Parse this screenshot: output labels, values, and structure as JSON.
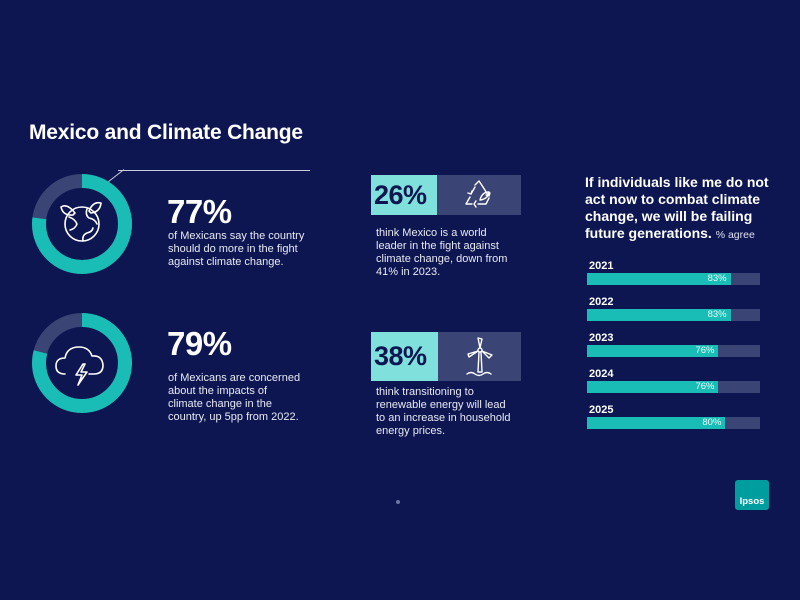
{
  "title": "Mexico and Climate Change",
  "stats": [
    {
      "value": "77%",
      "fraction": 0.77,
      "text": [
        "of Mexicans say the country",
        "should do more in the fight",
        "against climate change."
      ],
      "icon": "earth-leaf-icon"
    },
    {
      "value": "79%",
      "fraction": 0.79,
      "text": [
        "of Mexicans are concerned",
        "about the impacts of",
        "climate change in the",
        "country, up 5pp from 2022."
      ],
      "icon": "storm-cloud-icon"
    }
  ],
  "boxes": [
    {
      "value": "26%",
      "text": [
        "think Mexico is a world",
        "leader in the fight against",
        "climate change, down from",
        "41% in 2023."
      ],
      "icon": "recycle-icon"
    },
    {
      "value": "38%",
      "text": [
        "think transitioning to",
        "renewable energy will lead",
        "to an increase in household",
        "energy prices."
      ],
      "icon": "wind-turbine-icon"
    }
  ],
  "chart_title_lines": [
    "If individuals like me do not",
    "act now to combat climate",
    "change, we will be failing",
    "future generations."
  ],
  "chart_title_suffix": "% agree",
  "logo_text": "Ipsos",
  "colors": {
    "background": "#0d1650",
    "teal": "#19bdb5",
    "light_teal": "#7fe0dc",
    "track": "#3a4475"
  },
  "chart_data": {
    "type": "bar",
    "orientation": "horizontal",
    "categories": [
      "2021",
      "2022",
      "2023",
      "2024",
      "2025"
    ],
    "values": [
      83,
      83,
      76,
      76,
      80
    ],
    "value_labels": [
      "83%",
      "83%",
      "76%",
      "76%",
      "80%"
    ],
    "ylim": [
      0,
      100
    ]
  }
}
